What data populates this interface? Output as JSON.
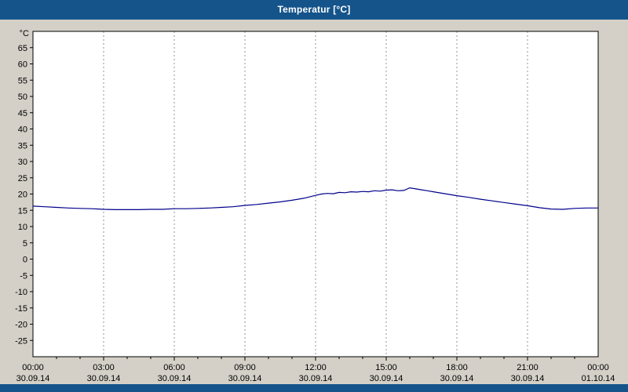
{
  "header": {
    "title": "Temperatur [°C]"
  },
  "colors": {
    "header_bg": "#15548b",
    "page_bg": "#d4d0c8",
    "plot_bg": "#ffffff",
    "plot_border": "#000000",
    "grid": "#8f93a6",
    "line": "#00008b"
  },
  "chart_data": {
    "type": "line",
    "title": "Temperatur [°C]",
    "y_unit": "°C",
    "ylim": [
      -30,
      70
    ],
    "y_tick_step": 5,
    "y_ticks": [
      65,
      60,
      55,
      50,
      45,
      40,
      35,
      30,
      25,
      20,
      15,
      10,
      5,
      0,
      -5,
      -10,
      -15,
      -20,
      -25
    ],
    "x_range_hours": [
      0,
      24
    ],
    "grid": "vertical-dashed",
    "legend": "none",
    "x_ticks": [
      {
        "hour": 0,
        "time": "00:00",
        "date": "30.09.14"
      },
      {
        "hour": 3,
        "time": "03:00",
        "date": "30.09.14"
      },
      {
        "hour": 6,
        "time": "06:00",
        "date": "30.09.14"
      },
      {
        "hour": 9,
        "time": "09:00",
        "date": "30.09.14"
      },
      {
        "hour": 12,
        "time": "12:00",
        "date": "30.09.14"
      },
      {
        "hour": 15,
        "time": "15:00",
        "date": "30.09.14"
      },
      {
        "hour": 18,
        "time": "18:00",
        "date": "30.09.14"
      },
      {
        "hour": 21,
        "time": "21:00",
        "date": "30.09.14"
      },
      {
        "hour": 24,
        "time": "00:00",
        "date": "01.10.14"
      }
    ],
    "series": [
      {
        "name": "Temperatur",
        "color": "#00008b",
        "x": [
          0,
          0.5,
          1,
          1.5,
          2,
          2.5,
          3,
          3.5,
          4,
          4.5,
          5,
          5.5,
          6,
          6.5,
          7,
          7.5,
          8,
          8.5,
          9,
          9.5,
          10,
          10.5,
          11,
          11.5,
          12,
          12.25,
          12.5,
          12.75,
          13,
          13.25,
          13.5,
          13.75,
          14,
          14.25,
          14.5,
          14.75,
          15,
          15.25,
          15.5,
          15.75,
          16,
          16.25,
          16.5,
          16.75,
          17,
          17.5,
          18,
          18.5,
          19,
          19.5,
          20,
          20.5,
          21,
          21.5,
          22,
          22.5,
          23,
          23.5,
          24
        ],
        "values": [
          16.3,
          16.1,
          15.9,
          15.7,
          15.6,
          15.5,
          15.3,
          15.2,
          15.2,
          15.2,
          15.3,
          15.3,
          15.5,
          15.5,
          15.6,
          15.7,
          15.9,
          16.1,
          16.5,
          16.8,
          17.2,
          17.6,
          18.1,
          18.7,
          19.6,
          20.0,
          20.2,
          20.1,
          20.5,
          20.4,
          20.7,
          20.6,
          20.8,
          20.7,
          21.0,
          20.9,
          21.2,
          21.3,
          21.0,
          21.1,
          21.9,
          21.6,
          21.3,
          21.0,
          20.7,
          20.1,
          19.5,
          19.0,
          18.4,
          17.9,
          17.4,
          16.9,
          16.4,
          15.8,
          15.4,
          15.3,
          15.6,
          15.7,
          15.7
        ]
      }
    ]
  }
}
